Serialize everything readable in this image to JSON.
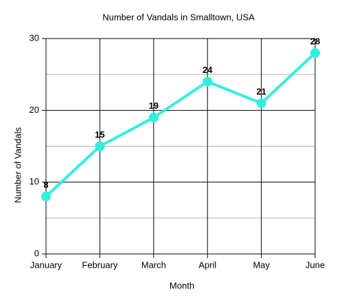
{
  "chart_data": {
    "type": "line",
    "title": "Number of Vandals in Smalltown, USA",
    "x_label": "Month",
    "y_label": "Number of  Vandals",
    "categories": [
      "January",
      "February",
      "March",
      "April",
      "May",
      "June"
    ],
    "series": [
      {
        "name": "Vandals",
        "color": "#33eedd",
        "values": [
          8,
          15,
          19,
          24,
          21,
          28
        ]
      }
    ],
    "ylim": [
      0,
      30
    ],
    "yticks": [
      0,
      10,
      20,
      30
    ],
    "minor_yticks": [
      5,
      15,
      25
    ],
    "grid": true
  }
}
